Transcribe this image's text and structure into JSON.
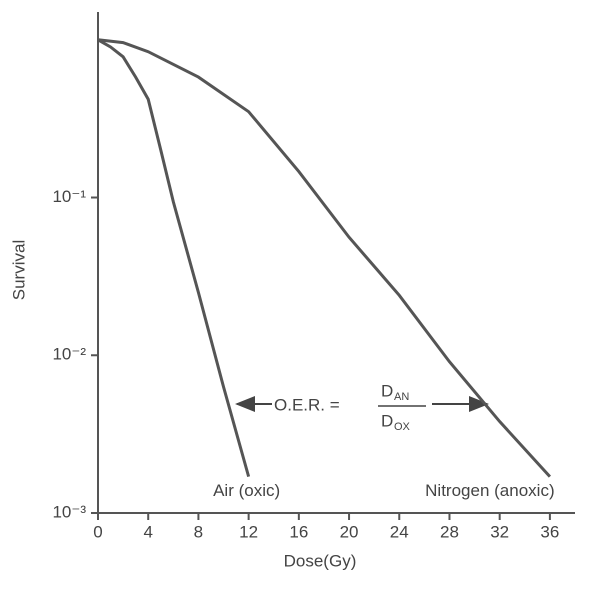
{
  "chart_data": {
    "type": "line",
    "log_y": true,
    "xlabel": "Dose(Gy)",
    "ylabel": "Survival",
    "xlim": [
      0,
      38
    ],
    "ylim": [
      0.001,
      1.5
    ],
    "xticks": [
      0,
      4,
      8,
      12,
      16,
      20,
      24,
      28,
      32,
      36
    ],
    "yticks": [
      {
        "value": 0.001,
        "label": "10⁻³"
      },
      {
        "value": 0.01,
        "label": "10⁻²"
      },
      {
        "value": 0.1,
        "label": "10⁻¹"
      }
    ],
    "series": [
      {
        "name": "Air (oxic)",
        "color": "#555555",
        "x": [
          0,
          1,
          2,
          3,
          4,
          5,
          6,
          8,
          10,
          12
        ],
        "values": [
          1,
          0.9,
          0.78,
          0.58,
          0.42,
          0.2,
          0.094,
          0.025,
          0.0063,
          0.0017
        ]
      },
      {
        "name": "Nitrogen (anoxic)",
        "color": "#555555",
        "x": [
          0,
          2,
          4,
          8,
          12,
          16,
          20,
          24,
          28,
          32,
          36
        ],
        "values": [
          1,
          0.96,
          0.84,
          0.58,
          0.35,
          0.146,
          0.056,
          0.024,
          0.0091,
          0.0038,
          0.0017
        ]
      }
    ],
    "annotation": {
      "lhs": "O.E.R. =",
      "num": "D",
      "num_sub": "AN",
      "den": "D",
      "den_sub": "OX"
    }
  }
}
